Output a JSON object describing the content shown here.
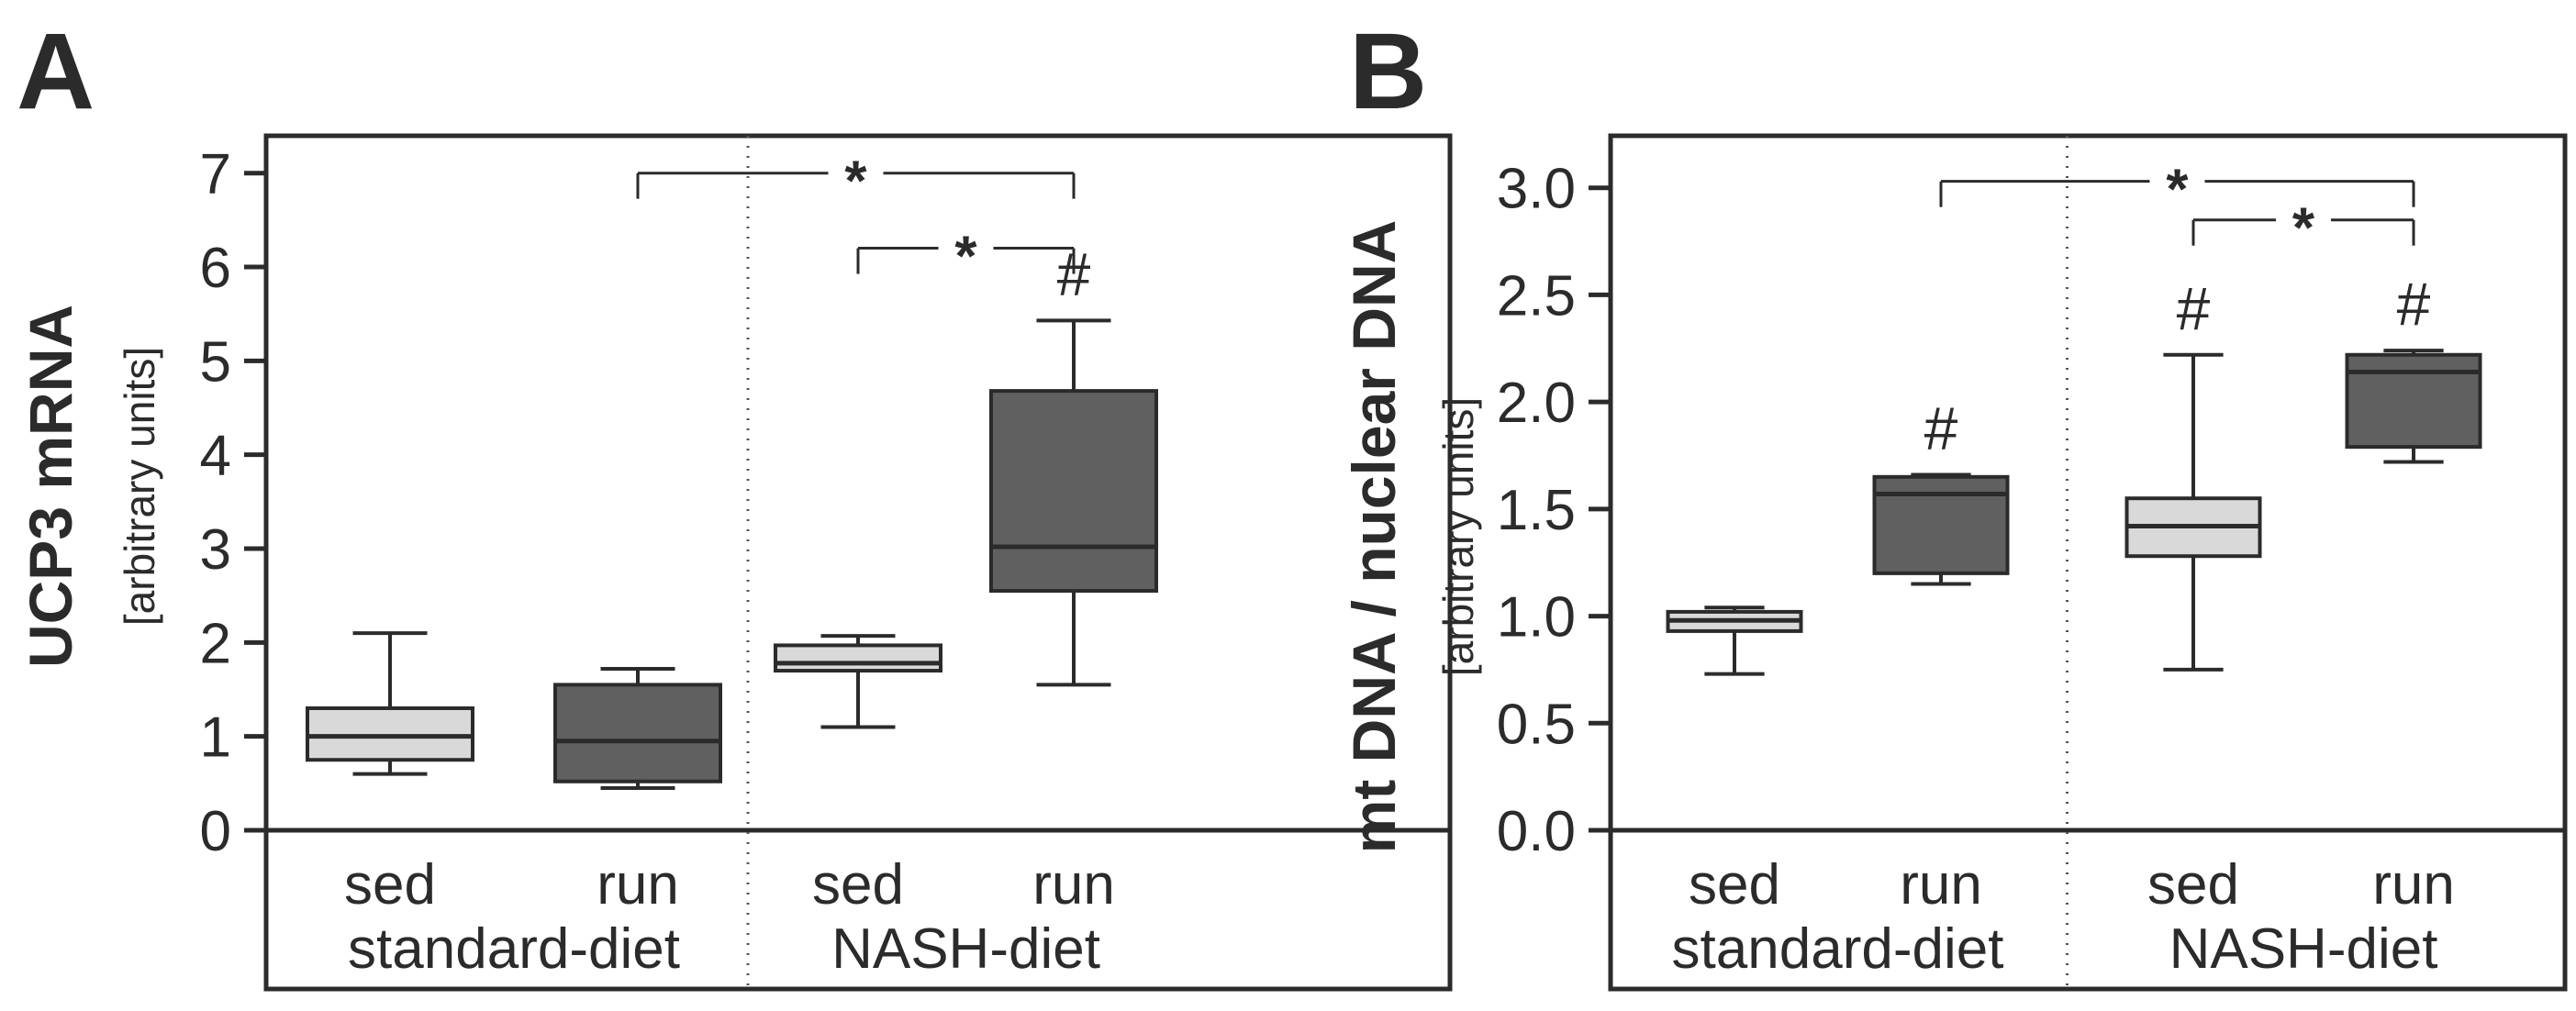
{
  "chart_data": [
    {
      "panel": "A",
      "type": "boxplot",
      "ylabel": "UCP3 mRNA",
      "ylabel_units": "[arbitrary units]",
      "ylim": [
        0,
        7.3
      ],
      "yticks": [
        0,
        1,
        2,
        3,
        4,
        5,
        6,
        7
      ],
      "ytick_labels": [
        "0",
        "1",
        "2",
        "3",
        "4",
        "5",
        "6",
        "7"
      ],
      "groups": [
        {
          "diet": "standard-diet",
          "conditions": [
            "sed",
            "run"
          ]
        },
        {
          "diet": "NASH-diet",
          "conditions": [
            "sed",
            "run"
          ]
        }
      ],
      "boxes": [
        {
          "group": "standard-diet",
          "label": "sed",
          "fill": "#d9d9d9",
          "min": 0.6,
          "q1": 0.75,
          "median": 1.0,
          "q3": 1.3,
          "max": 2.1,
          "marker": ""
        },
        {
          "group": "standard-diet",
          "label": "run",
          "fill": "#606060",
          "min": 0.45,
          "q1": 0.52,
          "median": 0.95,
          "q3": 1.55,
          "max": 1.72,
          "marker": ""
        },
        {
          "group": "NASH-diet",
          "label": "sed",
          "fill": "#d9d9d9",
          "min": 1.1,
          "q1": 1.7,
          "median": 1.78,
          "q3": 1.97,
          "max": 2.07,
          "marker": ""
        },
        {
          "group": "NASH-diet",
          "label": "run",
          "fill": "#606060",
          "min": 1.55,
          "q1": 2.55,
          "median": 3.02,
          "q3": 4.68,
          "max": 5.43,
          "marker": "#"
        }
      ],
      "significance": [
        {
          "from": 1,
          "to": 3,
          "y": 7.0,
          "label": "*"
        },
        {
          "from": 2,
          "to": 3,
          "y": 6.2,
          "label": "*"
        }
      ]
    },
    {
      "panel": "B",
      "type": "boxplot",
      "ylabel": "mt DNA / nuclear DNA",
      "ylabel_units": "[arbitrary units]",
      "ylim": [
        0,
        3.2
      ],
      "yticks": [
        0,
        0.5,
        1,
        1.5,
        2,
        2.5,
        3
      ],
      "ytick_labels": [
        "0.0",
        "0.5",
        "1.0",
        "1.5",
        "2.0",
        "2.5",
        "3.0"
      ],
      "groups": [
        {
          "diet": "standard-diet",
          "conditions": [
            "sed",
            "run"
          ]
        },
        {
          "diet": "NASH-diet",
          "conditions": [
            "sed",
            "run"
          ]
        }
      ],
      "boxes": [
        {
          "group": "standard-diet",
          "label": "sed",
          "fill": "#d9d9d9",
          "min": 0.73,
          "q1": 0.93,
          "median": 0.98,
          "q3": 1.02,
          "max": 1.04,
          "marker": ""
        },
        {
          "group": "standard-diet",
          "label": "run",
          "fill": "#606060",
          "min": 1.15,
          "q1": 1.2,
          "median": 1.57,
          "q3": 1.65,
          "max": 1.66,
          "marker": "#"
        },
        {
          "group": "NASH-diet",
          "label": "sed",
          "fill": "#d9d9d9",
          "min": 0.75,
          "q1": 1.28,
          "median": 1.42,
          "q3": 1.55,
          "max": 2.22,
          "marker": "#"
        },
        {
          "group": "NASH-diet",
          "label": "run",
          "fill": "#606060",
          "min": 1.72,
          "q1": 1.79,
          "median": 2.14,
          "q3": 2.22,
          "max": 2.24,
          "marker": "#"
        }
      ],
      "significance": [
        {
          "from": 1,
          "to": 3,
          "y": 3.03,
          "label": "*"
        },
        {
          "from": 2,
          "to": 3,
          "y": 2.85,
          "label": "*"
        }
      ]
    }
  ]
}
